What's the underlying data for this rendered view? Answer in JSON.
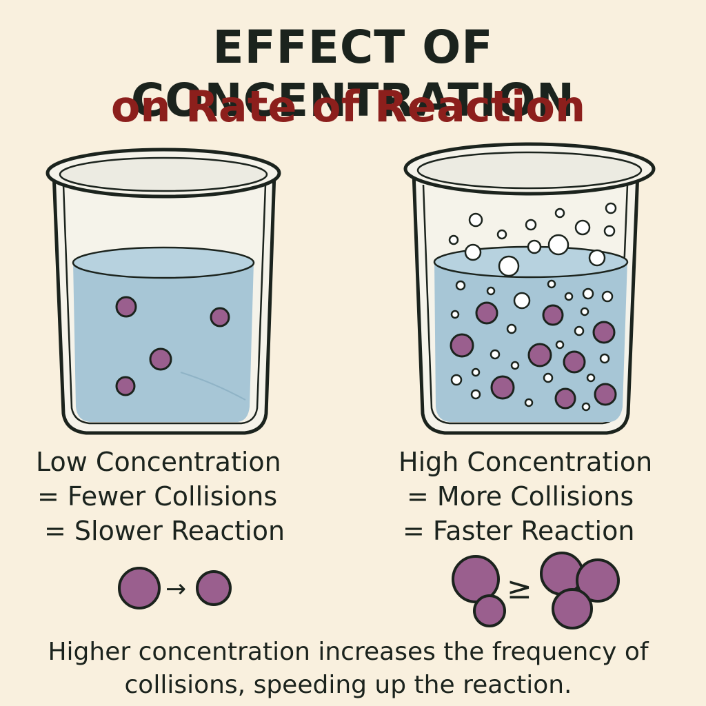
{
  "title": {
    "main": "EFFECT OF CONCENTRATION",
    "sub": "on Rate of Reaction"
  },
  "low": {
    "heading": "Low Concentration",
    "line2": "= Fewer Collisions",
    "line3": "= Slower Reaction"
  },
  "high": {
    "heading": "High Concentration",
    "line2": "= More Collisions",
    "line3": "= Faster Reaction"
  },
  "footer": {
    "line1": "Higher concentration increases the frequency of",
    "line2": "collisions, speeding up the reaction."
  },
  "colors": {
    "background": "#f9f0de",
    "title": "#1b231d",
    "subtitle": "#8c1f1c",
    "liquid": "#a7c6d6",
    "particle": "#9a5f8e",
    "outline": "#1b231d"
  },
  "icons": {
    "arrow_symbol": "→",
    "relation_symbol": "≥"
  }
}
